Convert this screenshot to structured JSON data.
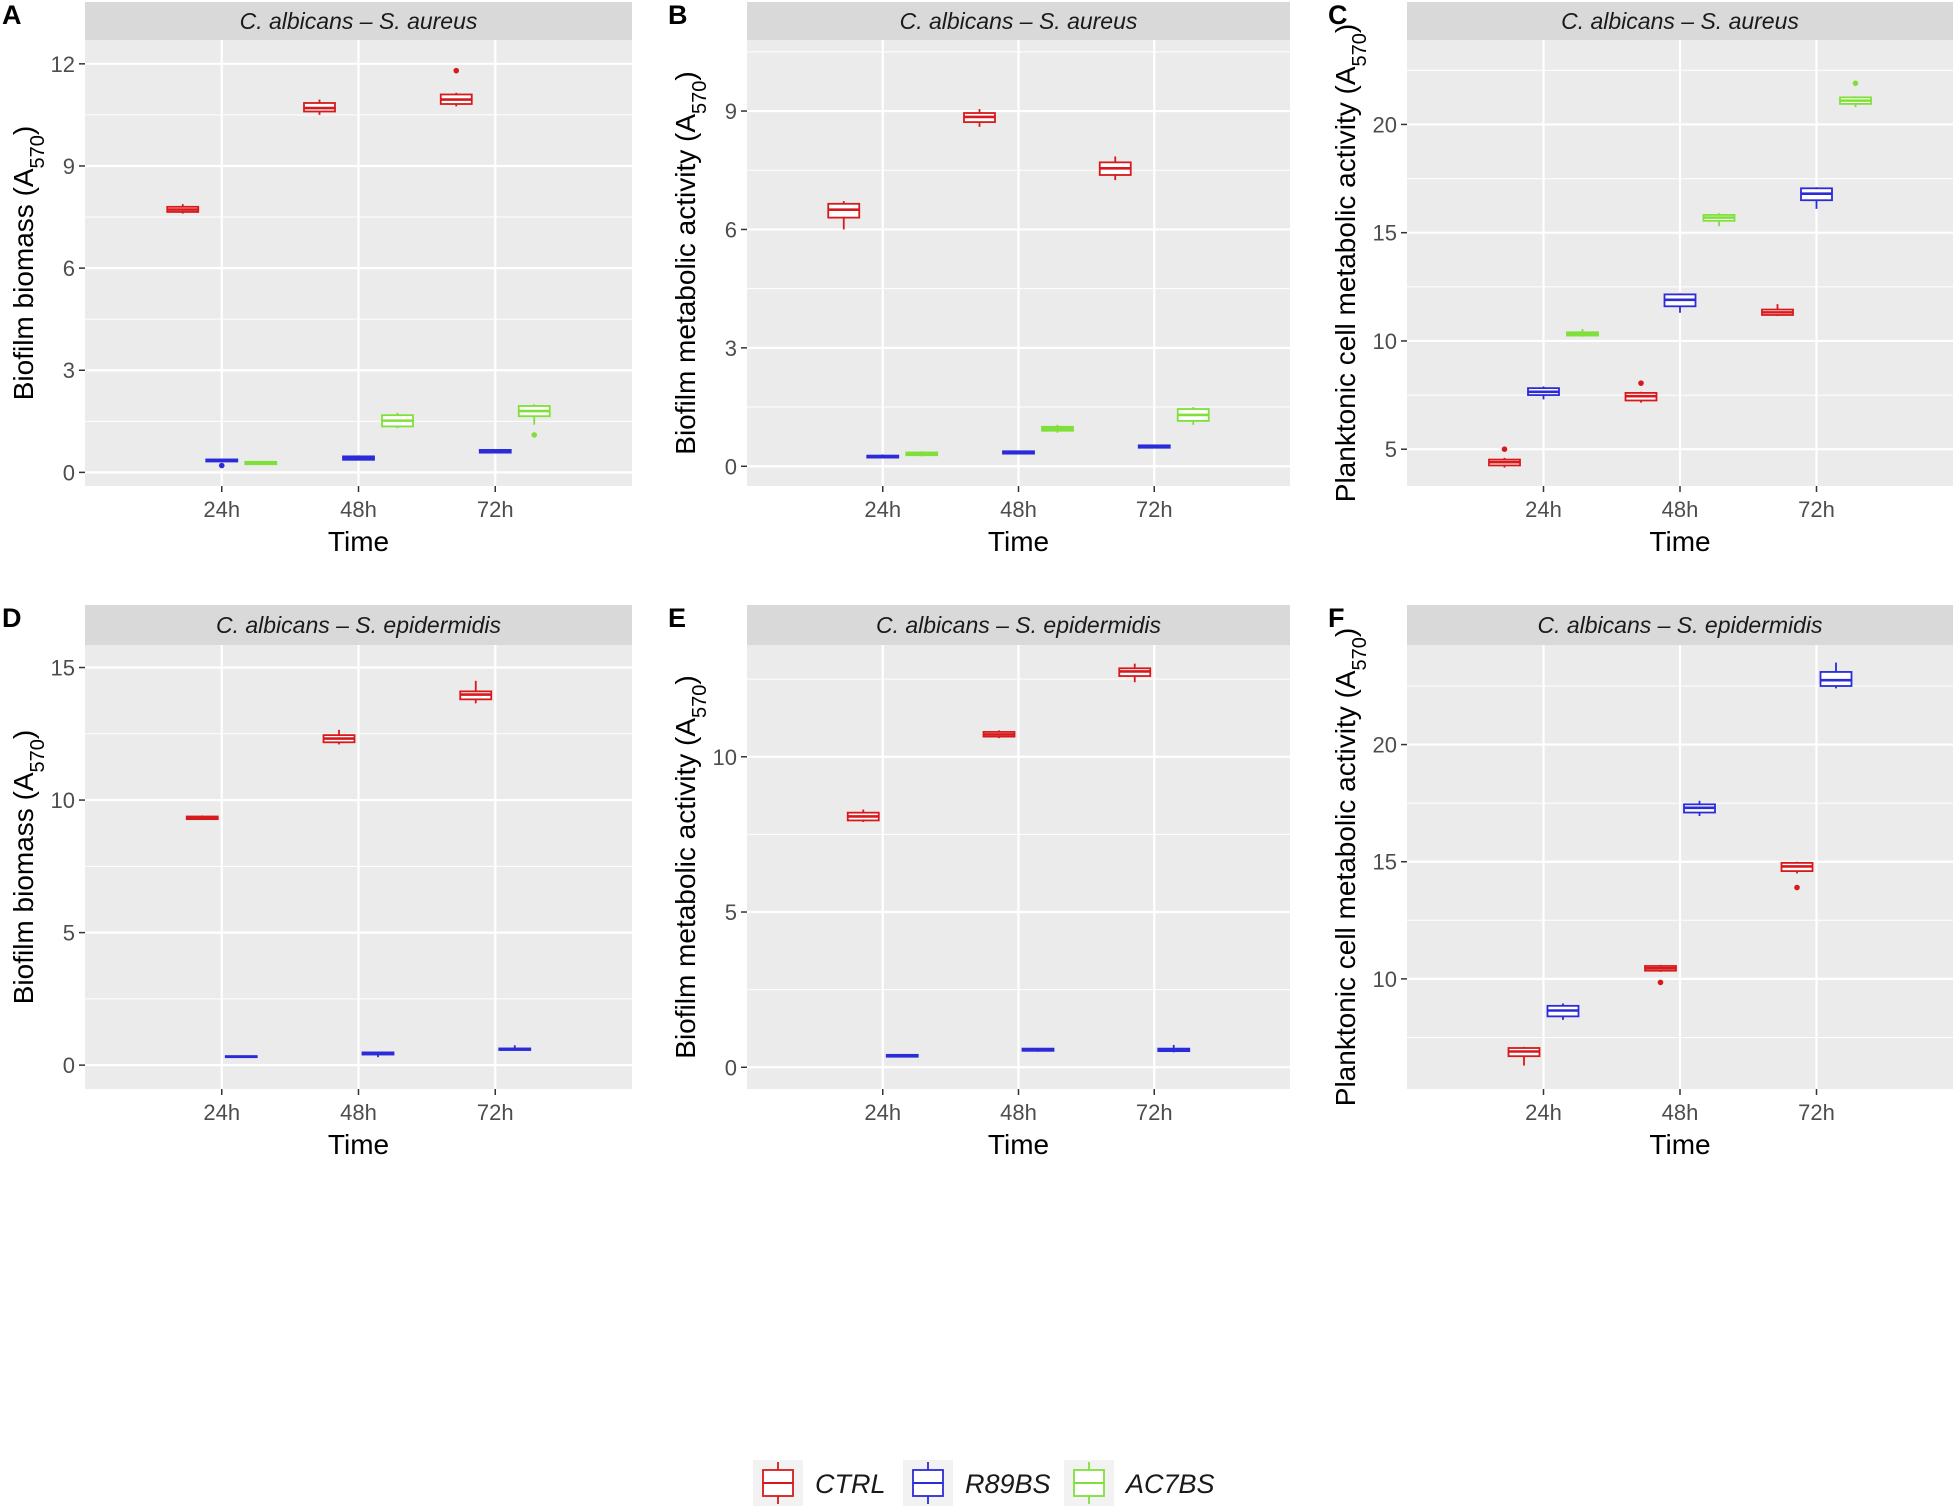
{
  "legend": [
    {
      "label": "CTRL",
      "color": "#d7191c"
    },
    {
      "label": "R89BS",
      "color": "#2b2bd9"
    },
    {
      "label": "AC7BS",
      "color": "#7fe03a"
    }
  ],
  "colors": {
    "CTRL": "#d7191c",
    "R89BS": "#2b2bd9",
    "AC7BS": "#7fe03a",
    "panel_bg": "#ebebeb",
    "strip_bg": "#d9d9d9"
  },
  "chart_data": [
    {
      "type": "boxplot",
      "panel": "A",
      "strip": "C. albicans – S. aureus",
      "xlabel": "Time",
      "ylabel": "Biofilm biomass (A570)",
      "categories": [
        "24h",
        "48h",
        "72h"
      ],
      "ylim": [
        -0.4,
        12.7
      ],
      "yticks": [
        0,
        3,
        6,
        9,
        12
      ],
      "series": [
        {
          "name": "CTRL",
          "boxes": [
            {
              "min": 7.6,
              "q1": 7.65,
              "median": 7.72,
              "q3": 7.8,
              "max": 7.88,
              "outliers": []
            },
            {
              "min": 10.5,
              "q1": 10.6,
              "median": 10.7,
              "q3": 10.85,
              "max": 10.95,
              "outliers": []
            },
            {
              "min": 10.75,
              "q1": 10.82,
              "median": 10.95,
              "q3": 11.1,
              "max": 11.15,
              "outliers": [
                11.8
              ]
            }
          ]
        },
        {
          "name": "R89BS",
          "boxes": [
            {
              "min": 0.3,
              "q1": 0.32,
              "median": 0.35,
              "q3": 0.38,
              "max": 0.4,
              "outliers": [
                0.2
              ]
            },
            {
              "min": 0.35,
              "q1": 0.37,
              "median": 0.42,
              "q3": 0.47,
              "max": 0.5,
              "outliers": []
            },
            {
              "min": 0.56,
              "q1": 0.58,
              "median": 0.62,
              "q3": 0.66,
              "max": 0.68,
              "outliers": []
            }
          ]
        },
        {
          "name": "AC7BS",
          "boxes": [
            {
              "min": 0.22,
              "q1": 0.24,
              "median": 0.27,
              "q3": 0.31,
              "max": 0.33,
              "outliers": []
            },
            {
              "min": 1.3,
              "q1": 1.35,
              "median": 1.52,
              "q3": 1.68,
              "max": 1.75,
              "outliers": []
            },
            {
              "min": 1.4,
              "q1": 1.65,
              "median": 1.8,
              "q3": 1.95,
              "max": 2.0,
              "outliers": [
                1.1
              ]
            }
          ]
        }
      ]
    },
    {
      "type": "boxplot",
      "panel": "B",
      "strip": "C. albicans – S. aureus",
      "xlabel": "Time",
      "ylabel": "Biofilm metabolic activity (A570)",
      "categories": [
        "24h",
        "48h",
        "72h"
      ],
      "ylim": [
        -0.5,
        10.8
      ],
      "yticks": [
        0,
        3,
        6,
        9
      ],
      "series": [
        {
          "name": "CTRL",
          "boxes": [
            {
              "min": 6.0,
              "q1": 6.3,
              "median": 6.5,
              "q3": 6.65,
              "max": 6.72,
              "outliers": []
            },
            {
              "min": 8.6,
              "q1": 8.72,
              "median": 8.85,
              "q3": 8.95,
              "max": 9.05,
              "outliers": []
            },
            {
              "min": 7.25,
              "q1": 7.38,
              "median": 7.55,
              "q3": 7.7,
              "max": 7.85,
              "outliers": []
            }
          ]
        },
        {
          "name": "R89BS",
          "boxes": [
            {
              "min": 0.2,
              "q1": 0.22,
              "median": 0.24,
              "q3": 0.27,
              "max": 0.3,
              "outliers": []
            },
            {
              "min": 0.3,
              "q1": 0.32,
              "median": 0.35,
              "q3": 0.38,
              "max": 0.4,
              "outliers": []
            },
            {
              "min": 0.45,
              "q1": 0.47,
              "median": 0.5,
              "q3": 0.53,
              "max": 0.55,
              "outliers": []
            }
          ]
        },
        {
          "name": "AC7BS",
          "boxes": [
            {
              "min": 0.25,
              "q1": 0.28,
              "median": 0.32,
              "q3": 0.35,
              "max": 0.38,
              "outliers": []
            },
            {
              "min": 0.85,
              "q1": 0.9,
              "median": 0.95,
              "q3": 1.0,
              "max": 1.05,
              "outliers": []
            },
            {
              "min": 1.05,
              "q1": 1.15,
              "median": 1.3,
              "q3": 1.45,
              "max": 1.5,
              "outliers": []
            }
          ]
        }
      ]
    },
    {
      "type": "boxplot",
      "panel": "C",
      "strip": "C. albicans – S. aureus",
      "xlabel": "Time",
      "ylabel": "Planktonic cell metabolic activity (A570)",
      "categories": [
        "24h",
        "48h",
        "72h"
      ],
      "ylim": [
        3.3,
        23.9
      ],
      "yticks": [
        5,
        10,
        15,
        20
      ],
      "series": [
        {
          "name": "CTRL",
          "boxes": [
            {
              "min": 4.15,
              "q1": 4.25,
              "median": 4.4,
              "q3": 4.52,
              "max": 4.6,
              "outliers": [
                5.0
              ]
            },
            {
              "min": 7.15,
              "q1": 7.25,
              "median": 7.45,
              "q3": 7.6,
              "max": 7.65,
              "outliers": [
                8.05
              ]
            },
            {
              "min": 11.15,
              "q1": 11.2,
              "median": 11.32,
              "q3": 11.45,
              "max": 11.7,
              "outliers": []
            }
          ]
        },
        {
          "name": "R89BS",
          "boxes": [
            {
              "min": 7.3,
              "q1": 7.5,
              "median": 7.65,
              "q3": 7.82,
              "max": 7.9,
              "outliers": []
            },
            {
              "min": 11.3,
              "q1": 11.6,
              "median": 11.9,
              "q3": 12.15,
              "max": 12.2,
              "outliers": []
            },
            {
              "min": 16.1,
              "q1": 16.5,
              "median": 16.8,
              "q3": 17.05,
              "max": 17.1,
              "outliers": []
            }
          ]
        },
        {
          "name": "AC7BS",
          "boxes": [
            {
              "min": 10.2,
              "q1": 10.25,
              "median": 10.32,
              "q3": 10.4,
              "max": 10.55,
              "outliers": []
            },
            {
              "min": 15.3,
              "q1": 15.55,
              "median": 15.7,
              "q3": 15.82,
              "max": 15.9,
              "outliers": []
            },
            {
              "min": 20.8,
              "q1": 20.95,
              "median": 21.1,
              "q3": 21.25,
              "max": 21.3,
              "outliers": [
                21.9
              ]
            }
          ]
        }
      ]
    },
    {
      "type": "boxplot",
      "panel": "D",
      "strip": "C. albicans – S. epidermidis",
      "xlabel": "Time",
      "ylabel": "Biofilm biomass (A570)",
      "categories": [
        "24h",
        "48h",
        "72h"
      ],
      "ylim": [
        -0.9,
        15.85
      ],
      "yticks": [
        0,
        5,
        10,
        15
      ],
      "series": [
        {
          "name": "CTRL",
          "boxes": [
            {
              "min": 9.25,
              "q1": 9.28,
              "median": 9.33,
              "q3": 9.38,
              "max": 9.42,
              "outliers": []
            },
            {
              "min": 12.1,
              "q1": 12.18,
              "median": 12.32,
              "q3": 12.45,
              "max": 12.65,
              "outliers": []
            },
            {
              "min": 13.65,
              "q1": 13.8,
              "median": 13.98,
              "q3": 14.1,
              "max": 14.5,
              "outliers": []
            }
          ]
        },
        {
          "name": "R89BS",
          "boxes": [
            {
              "min": 0.28,
              "q1": 0.3,
              "median": 0.32,
              "q3": 0.34,
              "max": 0.36,
              "outliers": []
            },
            {
              "min": 0.3,
              "q1": 0.4,
              "median": 0.45,
              "q3": 0.48,
              "max": 0.5,
              "outliers": []
            },
            {
              "min": 0.55,
              "q1": 0.57,
              "median": 0.6,
              "q3": 0.63,
              "max": 0.75,
              "outliers": []
            }
          ]
        }
      ]
    },
    {
      "type": "boxplot",
      "panel": "E",
      "strip": "C. albicans – S. epidermidis",
      "xlabel": "Time",
      "ylabel": "Biofilm metabolic activity (A570)",
      "categories": [
        "24h",
        "48h",
        "72h"
      ],
      "ylim": [
        -0.7,
        13.6
      ],
      "yticks": [
        0,
        5,
        10
      ],
      "series": [
        {
          "name": "CTRL",
          "boxes": [
            {
              "min": 7.9,
              "q1": 7.95,
              "median": 8.08,
              "q3": 8.2,
              "max": 8.3,
              "outliers": []
            },
            {
              "min": 10.6,
              "q1": 10.65,
              "median": 10.72,
              "q3": 10.8,
              "max": 10.85,
              "outliers": []
            },
            {
              "min": 12.4,
              "q1": 12.6,
              "median": 12.75,
              "q3": 12.85,
              "max": 13.0,
              "outliers": []
            }
          ]
        },
        {
          "name": "R89BS",
          "boxes": [
            {
              "min": 0.32,
              "q1": 0.34,
              "median": 0.37,
              "q3": 0.4,
              "max": 0.42,
              "outliers": []
            },
            {
              "min": 0.5,
              "q1": 0.53,
              "median": 0.57,
              "q3": 0.6,
              "max": 0.62,
              "outliers": []
            },
            {
              "min": 0.48,
              "q1": 0.52,
              "median": 0.56,
              "q3": 0.6,
              "max": 0.72,
              "outliers": []
            }
          ]
        }
      ]
    },
    {
      "type": "boxplot",
      "panel": "F",
      "strip": "C. albicans – S. epidermidis",
      "xlabel": "Time",
      "ylabel": "Planktonic cell metabolic activity (A570)",
      "categories": [
        "24h",
        "48h",
        "72h"
      ],
      "ylim": [
        5.3,
        24.25
      ],
      "yticks": [
        10,
        15,
        20
      ],
      "series": [
        {
          "name": "CTRL",
          "boxes": [
            {
              "min": 6.3,
              "q1": 6.7,
              "median": 6.9,
              "q3": 7.05,
              "max": 7.1,
              "outliers": []
            },
            {
              "min": 10.3,
              "q1": 10.35,
              "median": 10.45,
              "q3": 10.55,
              "max": 10.6,
              "outliers": [
                9.85
              ]
            },
            {
              "min": 14.5,
              "q1": 14.6,
              "median": 14.8,
              "q3": 14.95,
              "max": 15.0,
              "outliers": [
                13.9
              ]
            }
          ]
        },
        {
          "name": "R89BS",
          "boxes": [
            {
              "min": 8.25,
              "q1": 8.4,
              "median": 8.65,
              "q3": 8.85,
              "max": 8.95,
              "outliers": []
            },
            {
              "min": 16.95,
              "q1": 17.1,
              "median": 17.3,
              "q3": 17.45,
              "max": 17.6,
              "outliers": []
            },
            {
              "min": 22.4,
              "q1": 22.5,
              "median": 22.75,
              "q3": 23.1,
              "max": 23.5,
              "outliers": []
            }
          ]
        }
      ]
    }
  ]
}
